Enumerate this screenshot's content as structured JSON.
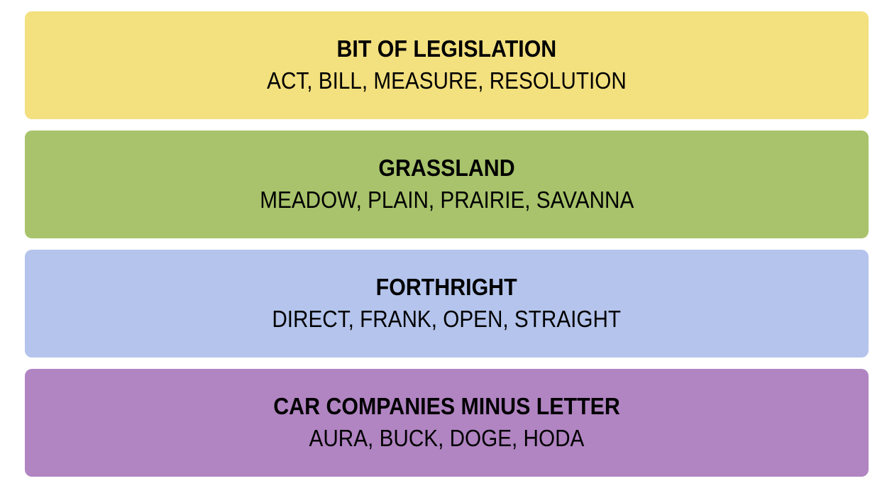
{
  "groups": [
    {
      "title": "BIT OF LEGISLATION",
      "members": "ACT, BILL, MEASURE, RESOLUTION",
      "color": "#f3e07e"
    },
    {
      "title": "GRASSLAND",
      "members": "MEADOW, PLAIN, PRAIRIE, SAVANNA",
      "color": "#a8c36b"
    },
    {
      "title": "FORTHRIGHT",
      "members": "DIRECT, FRANK, OPEN, STRAIGHT",
      "color": "#b4c4ec"
    },
    {
      "title": "CAR COMPANIES MINUS LETTER",
      "members": "AURA, BUCK, DOGE, HODA",
      "color": "#b184c2"
    }
  ]
}
